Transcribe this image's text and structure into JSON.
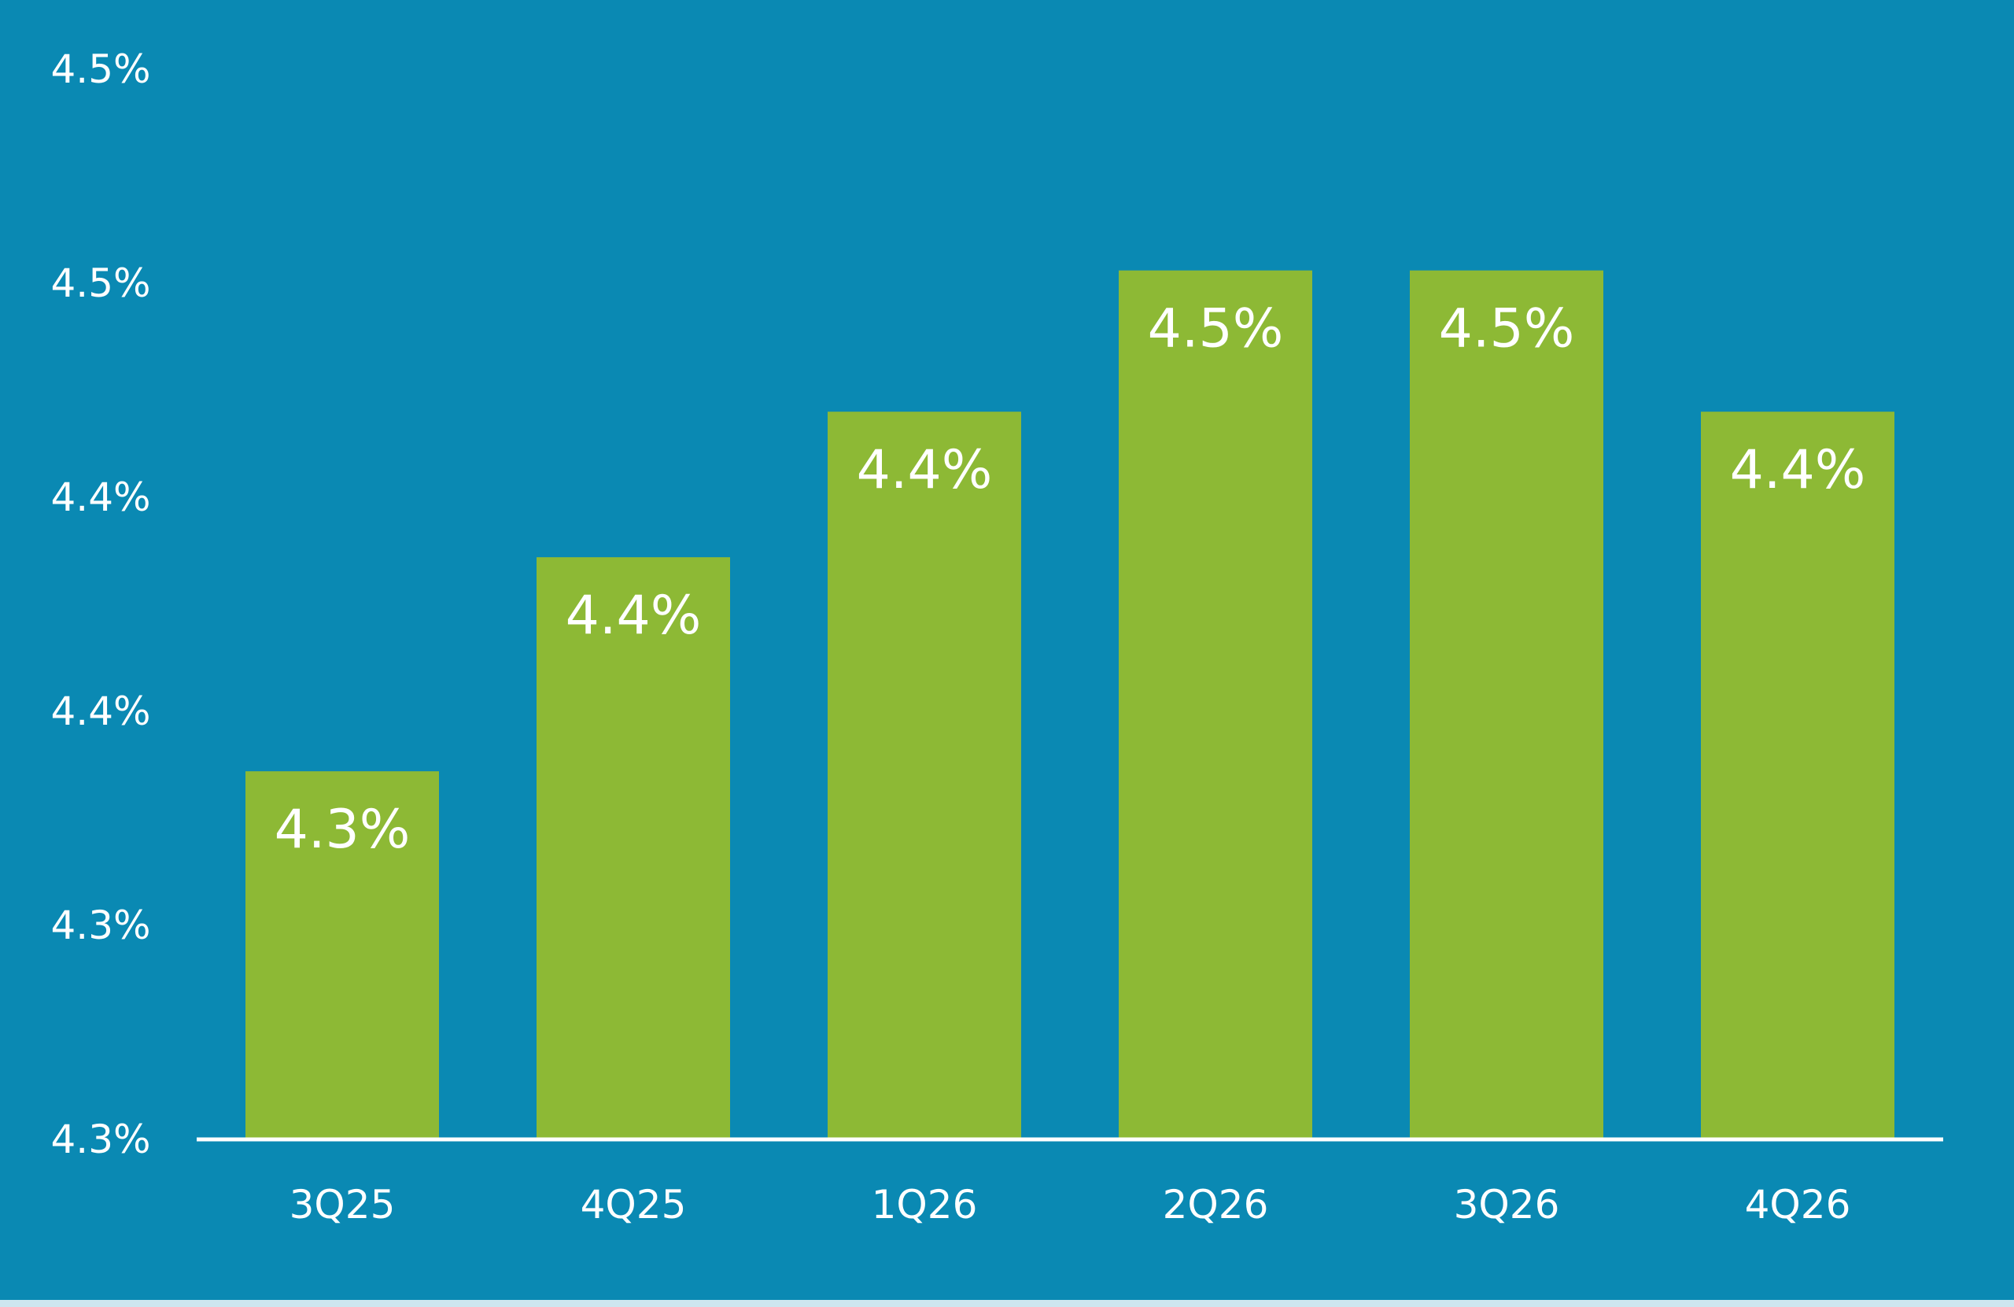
{
  "chart_data": {
    "type": "bar",
    "categories": [
      "3Q25",
      "4Q25",
      "1Q26",
      "2Q26",
      "3Q26",
      "4Q26"
    ],
    "values": [
      4.336,
      4.386,
      4.42,
      4.453,
      4.453,
      4.42
    ],
    "data_labels": [
      "4.3%",
      "4.4%",
      "4.4%",
      "4.5%",
      "4.5%",
      "4.4%"
    ],
    "ylim": [
      4.25,
      4.5
    ],
    "yticks": [
      {
        "value": 4.25,
        "label": "4.3%"
      },
      {
        "value": 4.3,
        "label": "4.3%"
      },
      {
        "value": 4.35,
        "label": "4.4%"
      },
      {
        "value": 4.4,
        "label": "4.4%"
      },
      {
        "value": 4.45,
        "label": "4.5%"
      },
      {
        "value": 4.5,
        "label": "4.5%"
      }
    ],
    "title": "",
    "xlabel": "",
    "ylabel": "",
    "grid": false,
    "colors": {
      "background": "#0a89b3",
      "bar": "#8db935",
      "axis_line": "#ffffff",
      "text": "#ffffff"
    }
  }
}
